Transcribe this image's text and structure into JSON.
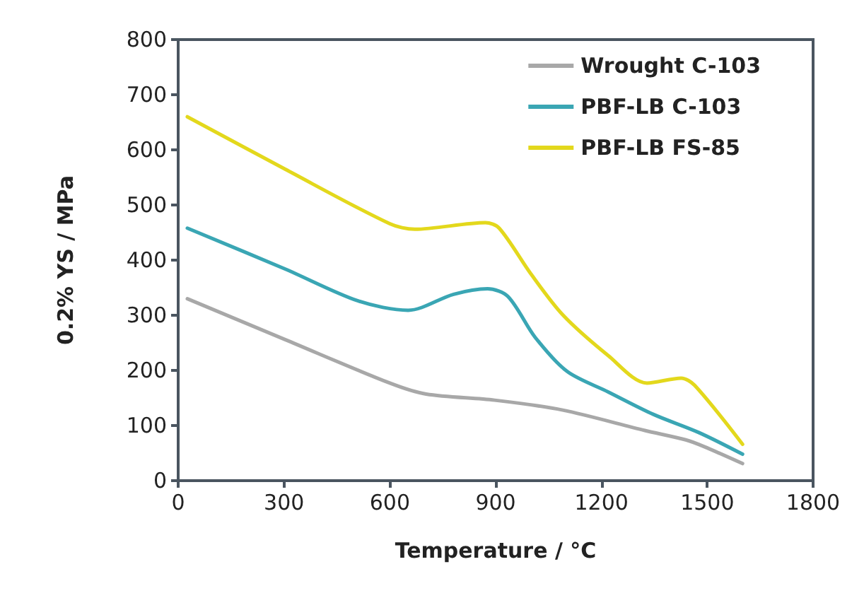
{
  "chart_data": {
    "type": "line",
    "xlabel": "Temperature / °C",
    "ylabel": "0.2% YS / MPa",
    "xlim": [
      0,
      1800
    ],
    "xticks": [
      0,
      300,
      600,
      900,
      1200,
      1500,
      1800
    ],
    "ylim": [
      0,
      800
    ],
    "yticks": [
      0,
      100,
      200,
      300,
      400,
      500,
      600,
      700,
      800
    ],
    "grid": false,
    "legend": "top right",
    "marker": "none",
    "line_style": "solid",
    "series": [
      {
        "name": "Wrought C-103",
        "color": "#a8a8a8",
        "x": [
          26,
          303,
          600,
          703,
          897,
          1090,
          1323,
          1439,
          1490,
          1600
        ],
        "values": [
          330,
          256,
          177,
          157,
          146,
          128,
          91,
          74,
          62,
          31
        ]
      },
      {
        "name": "PBF-LB C-103",
        "color": "#3aa6b4",
        "x": [
          26,
          303,
          510,
          652,
          781,
          877,
          935,
          1012,
          1103,
          1219,
          1348,
          1477,
          1600
        ],
        "values": [
          458,
          384,
          326,
          309,
          338,
          348,
          334,
          260,
          198,
          161,
          120,
          87,
          48
        ]
      },
      {
        "name": "PBF-LB FS-85",
        "color": "#e3d81c",
        "x": [
          26,
          303,
          600,
          671,
          871,
          910,
          1000,
          1090,
          1219,
          1329,
          1426,
          1464,
          1600
        ],
        "values": [
          660,
          565,
          466,
          456,
          468,
          458,
          375,
          301,
          227,
          177,
          186,
          173,
          66
        ]
      }
    ]
  }
}
